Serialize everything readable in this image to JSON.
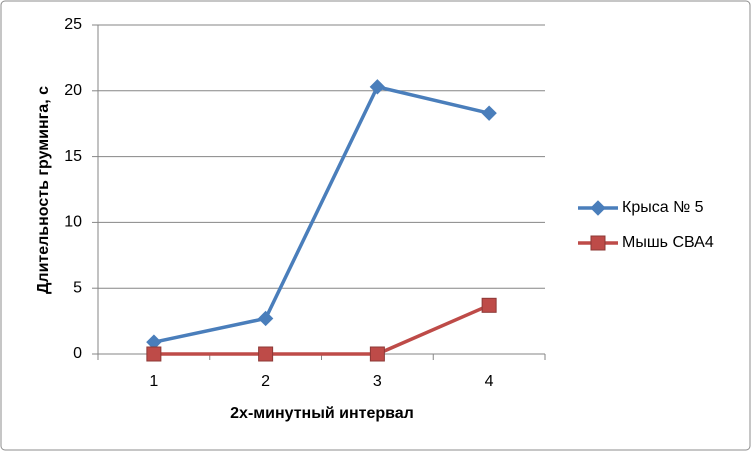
{
  "chart_data": {
    "type": "line",
    "x_label": "2х-минутный интервал",
    "y_label": "Длительность груминга, с",
    "categories": [
      "1",
      "2",
      "3",
      "4"
    ],
    "series": [
      {
        "name": "Крыса № 5",
        "color": "#4a7ebb",
        "marker": "diamond",
        "values": [
          0.9,
          2.7,
          20.3,
          18.3
        ]
      },
      {
        "name": "Мышь СВА4",
        "color": "#be4b48",
        "marker": "square",
        "values": [
          0,
          0,
          0,
          3.7
        ]
      }
    ],
    "ylim": [
      0,
      25
    ],
    "yticks": [
      0,
      5,
      10,
      15,
      20,
      25
    ],
    "grid": true,
    "legend": "right"
  }
}
